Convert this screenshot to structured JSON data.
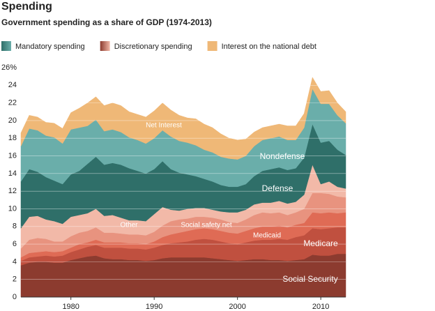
{
  "chart_data": {
    "type": "stacked_area",
    "title": "Spending",
    "subtitle": "Government spending as a share of GDP (1974-2013)",
    "legend": [
      {
        "name": "Mandatory spending",
        "colors": [
          "#2f6f69",
          "#6aaeaa"
        ]
      },
      {
        "name": "Discretionary spending",
        "colors": [
          "#8c3b2f",
          "#f2b9a8"
        ]
      },
      {
        "name": "Interest on the national debt",
        "colors": [
          "#efb877",
          "#efb877"
        ]
      }
    ],
    "x": [
      1974,
      1975,
      1976,
      1977,
      1978,
      1979,
      1980,
      1981,
      1982,
      1983,
      1984,
      1985,
      1986,
      1987,
      1988,
      1989,
      1990,
      1991,
      1992,
      1993,
      1994,
      1995,
      1996,
      1997,
      1998,
      1999,
      2000,
      2001,
      2002,
      2003,
      2004,
      2005,
      2006,
      2007,
      2008,
      2009,
      2010,
      2011,
      2012,
      2013
    ],
    "xlim": [
      1974,
      2013
    ],
    "xticks": [
      1980,
      1990,
      2000,
      2010
    ],
    "ylim": [
      0,
      26
    ],
    "yticks": [
      0,
      2,
      4,
      6,
      8,
      10,
      12,
      14,
      16,
      18,
      20,
      22,
      24,
      {
        "value": 26,
        "label": "26%"
      }
    ],
    "series": [
      {
        "name": "Social Security",
        "color": "#8c3b2f",
        "label_color": "#ffffff",
        "values": [
          3.6,
          3.9,
          4.0,
          4.0,
          3.9,
          3.9,
          4.2,
          4.4,
          4.6,
          4.7,
          4.4,
          4.3,
          4.3,
          4.2,
          4.2,
          4.1,
          4.2,
          4.4,
          4.5,
          4.5,
          4.5,
          4.5,
          4.5,
          4.4,
          4.3,
          4.2,
          4.1,
          4.2,
          4.3,
          4.3,
          4.2,
          4.2,
          4.1,
          4.2,
          4.3,
          4.8,
          4.7,
          4.7,
          4.9,
          4.9
        ]
      },
      {
        "name": "Medicare",
        "color": "#c0503f",
        "label_color": "#ffffff",
        "values": [
          0.5,
          0.6,
          0.6,
          0.7,
          0.7,
          0.8,
          0.9,
          1.0,
          1.1,
          1.2,
          1.2,
          1.3,
          1.3,
          1.3,
          1.3,
          1.3,
          1.4,
          1.5,
          1.6,
          1.7,
          1.8,
          2.0,
          2.1,
          2.1,
          2.0,
          1.9,
          1.9,
          2.0,
          2.1,
          2.2,
          2.3,
          2.4,
          2.4,
          2.6,
          2.7,
          3.0,
          3.0,
          3.1,
          3.0,
          3.0
        ]
      },
      {
        "name": "Medicaid",
        "color": "#df6b55",
        "label_color": "#ffffff",
        "values": [
          0.4,
          0.5,
          0.5,
          0.5,
          0.5,
          0.5,
          0.5,
          0.6,
          0.5,
          0.6,
          0.6,
          0.6,
          0.6,
          0.6,
          0.6,
          0.6,
          0.7,
          0.9,
          1.0,
          1.1,
          1.2,
          1.2,
          1.2,
          1.2,
          1.2,
          1.2,
          1.2,
          1.3,
          1.4,
          1.5,
          1.5,
          1.5,
          1.4,
          1.4,
          1.4,
          1.8,
          1.8,
          1.8,
          1.6,
          1.7
        ]
      },
      {
        "name": "Social safety net",
        "color": "#e8937f",
        "label_color": "#ffffff",
        "values": [
          1.0,
          1.5,
          1.6,
          1.4,
          1.2,
          1.1,
          1.3,
          1.3,
          1.3,
          1.4,
          1.1,
          1.1,
          1.0,
          1.0,
          1.0,
          1.0,
          1.1,
          1.3,
          1.5,
          1.5,
          1.4,
          1.4,
          1.3,
          1.3,
          1.3,
          1.2,
          1.2,
          1.3,
          1.5,
          1.6,
          1.5,
          1.5,
          1.4,
          1.4,
          1.6,
          2.2,
          2.3,
          2.1,
          1.9,
          1.7
        ]
      },
      {
        "name": "Other",
        "color": "#f2b9a8",
        "label_color": "#ffffff",
        "values": [
          2.3,
          2.6,
          2.5,
          2.2,
          2.3,
          2.0,
          2.2,
          2.0,
          2.0,
          2.1,
          1.9,
          2.0,
          1.8,
          1.6,
          1.6,
          1.6,
          2.0,
          2.1,
          1.3,
          1.0,
          1.1,
          1.0,
          1.0,
          0.9,
          0.9,
          1.1,
          1.2,
          1.1,
          1.2,
          1.1,
          1.2,
          1.3,
          1.3,
          1.2,
          1.6,
          3.2,
          1.0,
          1.4,
          1.1,
          1.0
        ]
      },
      {
        "name": "Defense",
        "color": "#2f6f69",
        "label_color": "#ffffff",
        "values": [
          5.3,
          5.4,
          5.0,
          4.8,
          4.6,
          4.5,
          4.8,
          5.0,
          5.6,
          5.9,
          5.8,
          5.9,
          6.0,
          5.9,
          5.6,
          5.4,
          5.1,
          5.2,
          4.6,
          4.3,
          3.9,
          3.6,
          3.3,
          3.2,
          3.0,
          2.9,
          2.9,
          2.9,
          3.2,
          3.6,
          3.8,
          3.8,
          3.8,
          3.8,
          4.2,
          4.6,
          4.7,
          4.6,
          4.2,
          3.8
        ]
      },
      {
        "name": "Nondefense",
        "color": "#6aaeaa",
        "label_color": "#ffffff",
        "values": [
          4.0,
          4.6,
          4.7,
          4.7,
          4.9,
          4.6,
          5.1,
          4.9,
          4.3,
          4.2,
          3.8,
          3.8,
          3.7,
          3.5,
          3.5,
          3.4,
          3.5,
          3.5,
          3.7,
          3.6,
          3.6,
          3.5,
          3.3,
          3.3,
          3.2,
          3.2,
          3.1,
          3.2,
          3.4,
          3.5,
          3.5,
          3.5,
          3.4,
          3.2,
          3.4,
          4.0,
          4.4,
          4.2,
          3.9,
          3.6
        ]
      },
      {
        "name": "Net Interest",
        "color": "#efb877",
        "label_color": "#ffffff",
        "values": [
          1.5,
          1.5,
          1.5,
          1.5,
          1.6,
          1.7,
          1.9,
          2.2,
          2.6,
          2.6,
          2.9,
          3.0,
          3.0,
          2.9,
          2.9,
          3.0,
          3.1,
          3.1,
          3.0,
          2.9,
          2.8,
          3.0,
          2.9,
          2.8,
          2.6,
          2.3,
          2.2,
          1.9,
          1.6,
          1.4,
          1.4,
          1.4,
          1.6,
          1.6,
          1.6,
          1.3,
          1.4,
          1.5,
          1.4,
          1.3
        ]
      }
    ],
    "grid": true
  }
}
